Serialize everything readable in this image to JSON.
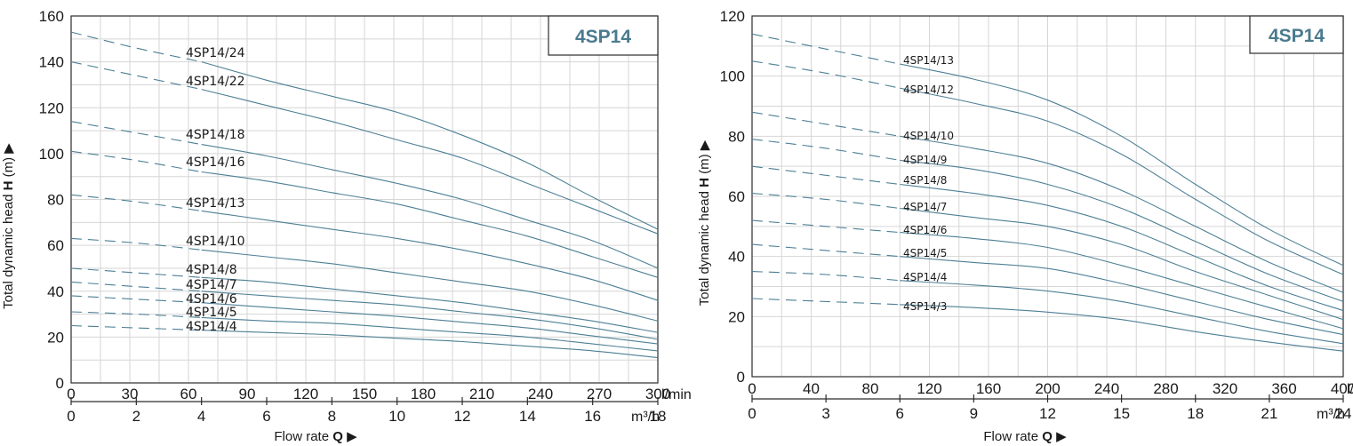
{
  "chart_data": [
    {
      "type": "line",
      "title": "4SP14",
      "ylabel_prefix": "Total dynamic head ",
      "ylabel_bold": "H",
      "ylabel_suffix": " (m) ▶",
      "xlabel_prefix": "Flow rate ",
      "xlabel_bold": "Q",
      "xlabel_suffix": " ▶",
      "ylim": [
        0,
        160
      ],
      "yticks": [
        0,
        20,
        40,
        60,
        80,
        100,
        120,
        140,
        160
      ],
      "xlim_m3h": [
        0,
        18
      ],
      "xticks_lmin": [
        "0",
        "30",
        "60",
        "90",
        "120",
        "150",
        "180",
        "210",
        "240",
        "270",
        "300"
      ],
      "xticks_m3h": [
        "0",
        "2",
        "4",
        "6",
        "8",
        "10",
        "12",
        "14",
        "16",
        "18"
      ],
      "unit_lmin": "l/min",
      "unit_m3h": "m³/h",
      "grid": true,
      "dashed_until_m3h": 4,
      "x": [
        0,
        2,
        4,
        6,
        8,
        10,
        12,
        14,
        16,
        18
      ],
      "series": [
        {
          "name": "4SP14/24",
          "values": [
            153,
            146,
            140,
            132,
            125,
            118,
            108,
            96,
            81,
            67
          ]
        },
        {
          "name": "4SP14/22",
          "values": [
            140,
            134,
            128,
            121,
            114,
            106,
            98,
            87,
            76,
            65
          ]
        },
        {
          "name": "4SP14/18",
          "values": [
            114,
            109,
            104,
            99,
            93,
            87,
            80,
            71,
            62,
            50
          ]
        },
        {
          "name": "4SP14/16",
          "values": [
            101,
            97,
            92,
            88,
            83,
            78,
            71,
            64,
            55,
            46
          ]
        },
        {
          "name": "4SP14/13",
          "values": [
            82,
            79,
            75,
            71,
            67,
            63,
            58,
            52,
            45,
            36
          ]
        },
        {
          "name": "4SP14/10",
          "values": [
            63,
            61,
            58,
            55,
            52,
            48,
            44,
            40,
            34,
            27
          ]
        },
        {
          "name": "4SP14/8",
          "values": [
            50,
            48,
            46,
            44,
            41,
            38,
            35,
            31,
            27,
            22
          ]
        },
        {
          "name": "4SP14/7",
          "values": [
            44,
            42,
            40,
            38,
            36,
            34,
            31,
            28,
            24,
            19
          ]
        },
        {
          "name": "4SP14/6",
          "values": [
            38,
            36.5,
            35,
            33,
            31,
            29,
            26.5,
            24,
            20.5,
            17
          ]
        },
        {
          "name": "4SP14/5",
          "values": [
            31,
            30,
            28.5,
            27,
            26,
            24,
            22,
            20,
            17,
            14
          ]
        },
        {
          "name": "4SP14/4",
          "values": [
            25,
            24,
            23,
            22,
            21,
            19.5,
            18,
            16,
            14,
            11
          ]
        }
      ]
    },
    {
      "type": "line",
      "title": "4SP14",
      "ylabel_prefix": "Total dynamic head ",
      "ylabel_bold": "H",
      "ylabel_suffix": " (m) ▶",
      "xlabel_prefix": "Flow rate ",
      "xlabel_bold": "Q",
      "xlabel_suffix": " ▶",
      "ylim": [
        0,
        120
      ],
      "yticks": [
        0,
        20,
        40,
        60,
        80,
        100,
        120
      ],
      "xlim_m3h": [
        0,
        24
      ],
      "xticks_lmin": [
        "0",
        "40",
        "80",
        "120",
        "160",
        "200",
        "240",
        "280",
        "320",
        "360",
        "400"
      ],
      "xticks_m3h": [
        "0",
        "3",
        "6",
        "9",
        "12",
        "15",
        "18",
        "21",
        "24"
      ],
      "unit_lmin": "l/min",
      "unit_m3h": "m³/h",
      "grid": true,
      "dashed_until_m3h": 6,
      "x": [
        0,
        3,
        6,
        9,
        12,
        15,
        18,
        21,
        24
      ],
      "series": [
        {
          "name": "4SP14/13",
          "values": [
            114,
            109,
            104,
            99,
            92,
            80,
            64,
            49,
            37
          ]
        },
        {
          "name": "4SP14/12",
          "values": [
            105,
            101,
            96,
            91,
            85,
            74,
            59,
            45,
            34
          ]
        },
        {
          "name": "4SP14/10",
          "values": [
            88,
            84,
            80,
            76,
            71,
            62,
            50,
            38,
            28
          ]
        },
        {
          "name": "4SP14/9",
          "values": [
            79,
            76,
            72,
            69,
            64,
            56,
            45,
            34,
            25
          ]
        },
        {
          "name": "4SP14/8",
          "values": [
            70,
            67,
            64,
            61,
            57,
            50,
            40,
            30,
            22
          ]
        },
        {
          "name": "4SP14/7",
          "values": [
            61,
            59,
            56,
            53,
            50,
            44,
            35,
            27,
            19
          ]
        },
        {
          "name": "4SP14/6",
          "values": [
            52,
            50,
            48,
            46,
            43,
            37,
            30,
            23,
            16
          ]
        },
        {
          "name": "4SP14/5",
          "values": [
            44,
            42,
            40,
            38,
            36,
            31,
            25,
            19,
            14
          ]
        },
        {
          "name": "4SP14/4",
          "values": [
            35,
            34,
            32,
            30.5,
            28.5,
            25,
            20,
            15,
            11
          ]
        },
        {
          "name": "4SP14/3",
          "values": [
            26,
            25,
            24,
            23,
            21.5,
            19,
            15,
            11.5,
            8.5
          ]
        }
      ]
    }
  ]
}
